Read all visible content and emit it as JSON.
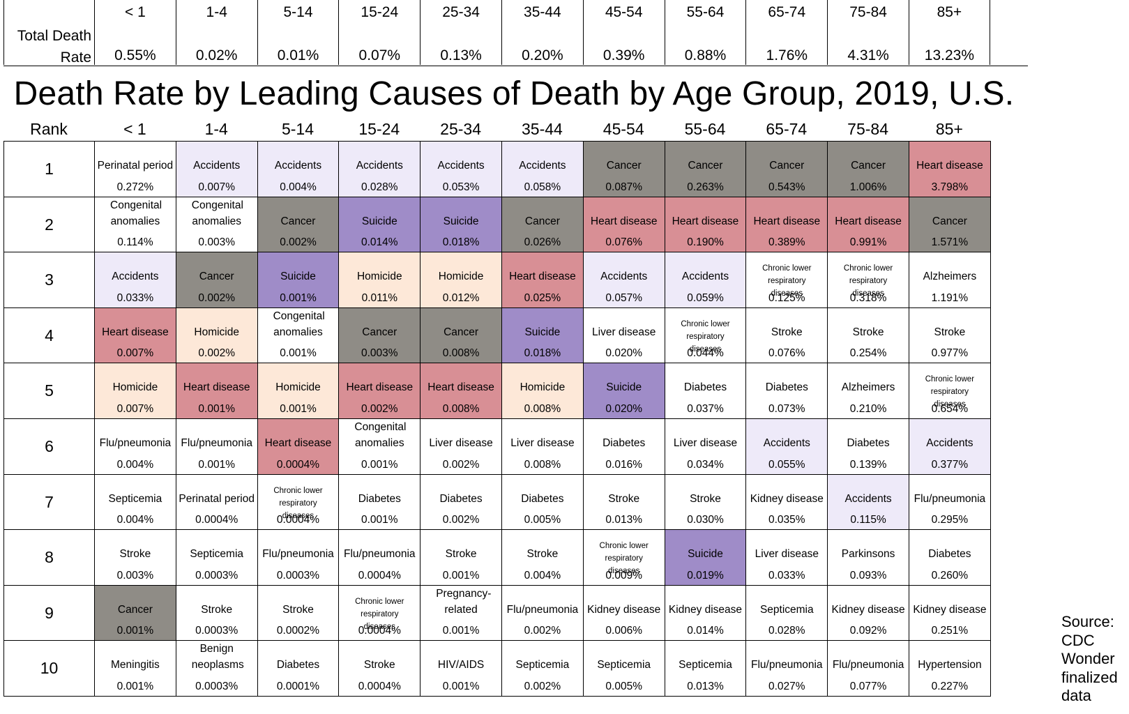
{
  "top": {
    "label_line1": "Total Death",
    "label_line2": "Rate",
    "age_groups": [
      "< 1",
      "1-4",
      "5-14",
      "15-24",
      "25-34",
      "35-44",
      "45-54",
      "55-64",
      "65-74",
      "75-84",
      "85+"
    ],
    "rates": [
      "0.55%",
      "0.02%",
      "0.01%",
      "0.07%",
      "0.13%",
      "0.20%",
      "0.39%",
      "0.88%",
      "1.76%",
      "4.31%",
      "13.23%"
    ]
  },
  "title": "Death Rate by Leading Causes of Death by Age Group, 2019, U.S.",
  "rank_header": "Rank",
  "source": [
    "Source:",
    "CDC",
    "Wonder",
    "finalized",
    "data"
  ],
  "colors": {
    "Accidents": "#eeeaf9",
    "Cancer": "#8f8c86",
    "Heart disease": "#d88f95",
    "Suicide": "#9f8cc8",
    "Homicide": "#fde8d8",
    "none": "#ffffff"
  },
  "chart_data": {
    "type": "table",
    "title": "Death Rate by Leading Causes of Death by Age Group, 2019, U.S.",
    "age_groups": [
      "< 1",
      "1-4",
      "5-14",
      "15-24",
      "25-34",
      "35-44",
      "45-54",
      "55-64",
      "65-74",
      "75-84",
      "85+"
    ],
    "total_death_rate": [
      "0.55%",
      "0.02%",
      "0.01%",
      "0.07%",
      "0.13%",
      "0.20%",
      "0.39%",
      "0.88%",
      "1.76%",
      "4.31%",
      "13.23%"
    ],
    "ranks": [
      1,
      2,
      3,
      4,
      5,
      6,
      7,
      8,
      9,
      10
    ],
    "rows": [
      [
        [
          "Perinatal period",
          "0.272%"
        ],
        [
          "Accidents",
          "0.007%"
        ],
        [
          "Accidents",
          "0.004%"
        ],
        [
          "Accidents",
          "0.028%"
        ],
        [
          "Accidents",
          "0.053%"
        ],
        [
          "Accidents",
          "0.058%"
        ],
        [
          "Cancer",
          "0.087%"
        ],
        [
          "Cancer",
          "0.263%"
        ],
        [
          "Cancer",
          "0.543%"
        ],
        [
          "Cancer",
          "1.006%"
        ],
        [
          "Heart disease",
          "3.798%"
        ]
      ],
      [
        [
          "Congenital anomalies",
          "0.114%"
        ],
        [
          "Congenital anomalies",
          "0.003%"
        ],
        [
          "Cancer",
          "0.002%"
        ],
        [
          "Suicide",
          "0.014%"
        ],
        [
          "Suicide",
          "0.018%"
        ],
        [
          "Cancer",
          "0.026%"
        ],
        [
          "Heart disease",
          "0.076%"
        ],
        [
          "Heart disease",
          "0.190%"
        ],
        [
          "Heart disease",
          "0.389%"
        ],
        [
          "Heart disease",
          "0.991%"
        ],
        [
          "Cancer",
          "1.571%"
        ]
      ],
      [
        [
          "Accidents",
          "0.033%"
        ],
        [
          "Cancer",
          "0.002%"
        ],
        [
          "Suicide",
          "0.001%"
        ],
        [
          "Homicide",
          "0.011%"
        ],
        [
          "Homicide",
          "0.012%"
        ],
        [
          "Heart disease",
          "0.025%"
        ],
        [
          "Accidents",
          "0.057%"
        ],
        [
          "Accidents",
          "0.059%"
        ],
        [
          "Chronic lower respiratory diseases",
          "0.125%"
        ],
        [
          "Chronic lower respiratory diseases",
          "0.318%"
        ],
        [
          "Alzheimers",
          "1.191%"
        ]
      ],
      [
        [
          "Heart disease",
          "0.007%"
        ],
        [
          "Homicide",
          "0.002%"
        ],
        [
          "Congenital anomalies",
          "0.001%"
        ],
        [
          "Cancer",
          "0.003%"
        ],
        [
          "Cancer",
          "0.008%"
        ],
        [
          "Suicide",
          "0.018%"
        ],
        [
          "Liver disease",
          "0.020%"
        ],
        [
          "Chronic lower respiratory diseases",
          "0.044%"
        ],
        [
          "Stroke",
          "0.076%"
        ],
        [
          "Stroke",
          "0.254%"
        ],
        [
          "Stroke",
          "0.977%"
        ]
      ],
      [
        [
          "Homicide",
          "0.007%"
        ],
        [
          "Heart disease",
          "0.001%"
        ],
        [
          "Homicide",
          "0.001%"
        ],
        [
          "Heart disease",
          "0.002%"
        ],
        [
          "Heart disease",
          "0.008%"
        ],
        [
          "Homicide",
          "0.008%"
        ],
        [
          "Suicide",
          "0.020%"
        ],
        [
          "Diabetes",
          "0.037%"
        ],
        [
          "Diabetes",
          "0.073%"
        ],
        [
          "Alzheimers",
          "0.210%"
        ],
        [
          "Chronic lower respiratory diseases",
          "0.654%"
        ]
      ],
      [
        [
          "Flu/pneumonia",
          "0.004%"
        ],
        [
          "Flu/pneumonia",
          "0.001%"
        ],
        [
          "Heart disease",
          "0.0004%"
        ],
        [
          "Congenital anomalies",
          "0.001%"
        ],
        [
          "Liver disease",
          "0.002%"
        ],
        [
          "Liver disease",
          "0.008%"
        ],
        [
          "Diabetes",
          "0.016%"
        ],
        [
          "Liver disease",
          "0.034%"
        ],
        [
          "Accidents",
          "0.055%"
        ],
        [
          "Diabetes",
          "0.139%"
        ],
        [
          "Accidents",
          "0.377%"
        ]
      ],
      [
        [
          "Septicemia",
          "0.004%"
        ],
        [
          "Perinatal period",
          "0.0004%"
        ],
        [
          "Chronic lower respiratory diseases",
          "0.0004%"
        ],
        [
          "Diabetes",
          "0.001%"
        ],
        [
          "Diabetes",
          "0.002%"
        ],
        [
          "Diabetes",
          "0.005%"
        ],
        [
          "Stroke",
          "0.013%"
        ],
        [
          "Stroke",
          "0.030%"
        ],
        [
          "Kidney disease",
          "0.035%"
        ],
        [
          "Accidents",
          "0.115%"
        ],
        [
          "Flu/pneumonia",
          "0.295%"
        ]
      ],
      [
        [
          "Stroke",
          "0.003%"
        ],
        [
          "Septicemia",
          "0.0003%"
        ],
        [
          "Flu/pneumonia",
          "0.0003%"
        ],
        [
          "Flu/pneumonia",
          "0.0004%"
        ],
        [
          "Stroke",
          "0.001%"
        ],
        [
          "Stroke",
          "0.004%"
        ],
        [
          "Chronic lower respiratory diseases",
          "0.009%"
        ],
        [
          "Suicide",
          "0.019%"
        ],
        [
          "Liver disease",
          "0.033%"
        ],
        [
          "Parkinsons",
          "0.093%"
        ],
        [
          "Diabetes",
          "0.260%"
        ]
      ],
      [
        [
          "Cancer",
          "0.001%"
        ],
        [
          "Stroke",
          "0.0003%"
        ],
        [
          "Stroke",
          "0.0002%"
        ],
        [
          "Chronic lower respiratory diseases",
          "0.0004%"
        ],
        [
          "Pregnancy-related",
          "0.001%"
        ],
        [
          "Flu/pneumonia",
          "0.002%"
        ],
        [
          "Kidney disease",
          "0.006%"
        ],
        [
          "Kidney disease",
          "0.014%"
        ],
        [
          "Septicemia",
          "0.028%"
        ],
        [
          "Kidney disease",
          "0.092%"
        ],
        [
          "Kidney disease",
          "0.251%"
        ]
      ],
      [
        [
          "Meningitis",
          "0.001%"
        ],
        [
          "Benign neoplasms",
          "0.0003%"
        ],
        [
          "Diabetes",
          "0.0001%"
        ],
        [
          "Stroke",
          "0.0004%"
        ],
        [
          "HIV/AIDS",
          "0.001%"
        ],
        [
          "Septicemia",
          "0.002%"
        ],
        [
          "Septicemia",
          "0.005%"
        ],
        [
          "Septicemia",
          "0.013%"
        ],
        [
          "Flu/pneumonia",
          "0.027%"
        ],
        [
          "Flu/pneumonia",
          "0.077%"
        ],
        [
          "Hypertension",
          "0.227%"
        ]
      ]
    ]
  }
}
